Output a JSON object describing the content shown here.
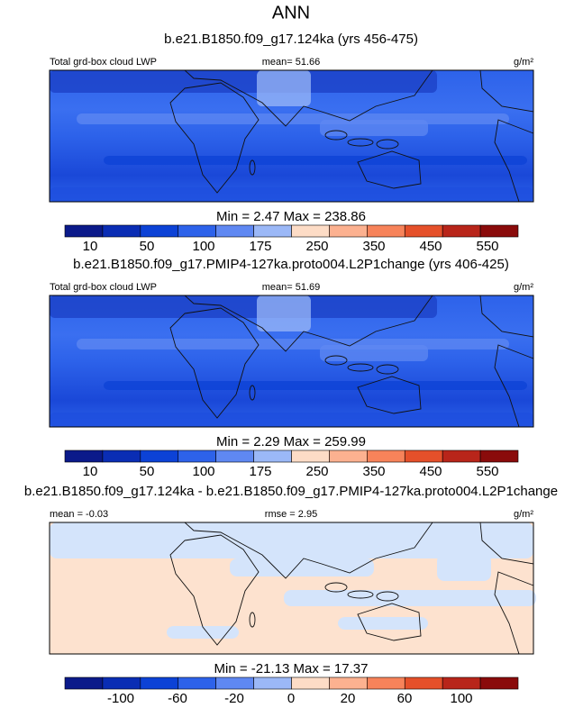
{
  "title": "ANN",
  "colorbar_colors": [
    "#0b1a8a",
    "#0a2db4",
    "#0c42d6",
    "#2d62ea",
    "#5f88f2",
    "#9bb8f7",
    "#d4e4fb",
    "#fddcc6",
    "#fcb190",
    "#f7835a",
    "#e5502a",
    "#b8251a",
    "#8a0b0b"
  ],
  "panels": [
    {
      "subtitle": "b.e21.B1850.f09_g17.124ka (yrs 456-475)",
      "left": "Total grd-box cloud LWP",
      "center": "mean=  51.66",
      "right": "g/m²",
      "minmax": "Min =   2.47 Max = 238.86",
      "colorbar_labels": [
        "10",
        "50",
        "100",
        "175",
        "250",
        "350",
        "450",
        "550"
      ]
    },
    {
      "subtitle": "b.e21.B1850.f09_g17.PMIP4-127ka.proto004.L2P1change (yrs 406-425)",
      "left": "Total grd-box cloud LWP",
      "center": "mean=  51.69",
      "right": "g/m²",
      "minmax": "Min =   2.29 Max = 259.99",
      "colorbar_labels": [
        "10",
        "50",
        "100",
        "175",
        "250",
        "350",
        "450",
        "550"
      ]
    },
    {
      "subtitle": "b.e21.B1850.f09_g17.124ka - b.e21.B1850.f09_g17.PMIP4-127ka.proto004.L2P1change",
      "left": "mean = -0.03",
      "center": "rmse =  2.95",
      "right": "g/m²",
      "minmax": "Min = -21.13 Max =  17.37",
      "colorbar_labels": [
        "-100",
        "-60",
        "-20",
        "0",
        "20",
        "60",
        "100"
      ]
    }
  ]
}
